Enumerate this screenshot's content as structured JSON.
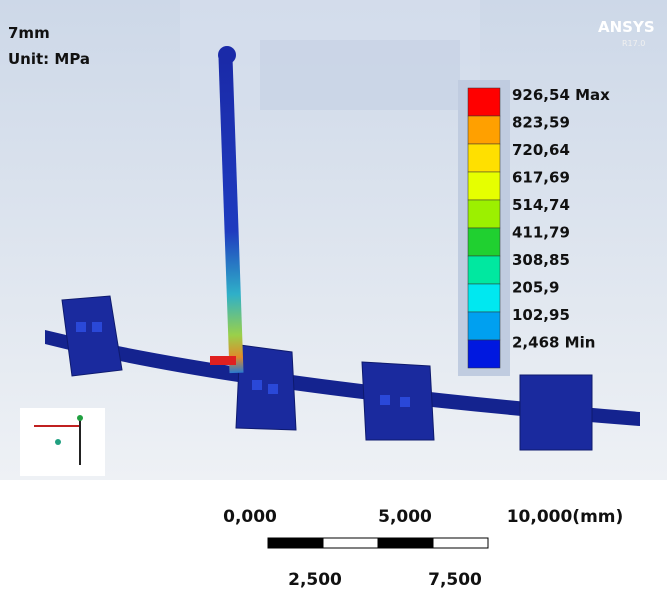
{
  "header": {
    "title": "7mm",
    "unit": "Unit: MPa",
    "brand": "ANSYS",
    "version": "R17.0"
  },
  "legend": {
    "labels": [
      "926,54 Max",
      "823,59",
      "720,64",
      "617,69",
      "514,74",
      "411,79",
      "308,85",
      "205,9",
      "102,95",
      "2,468 Min"
    ]
  },
  "scale_bar": {
    "top_labels": [
      "0,000",
      "5,000",
      "10,000(mm)"
    ],
    "bottom_labels": [
      "2,500",
      "7,500"
    ]
  }
}
